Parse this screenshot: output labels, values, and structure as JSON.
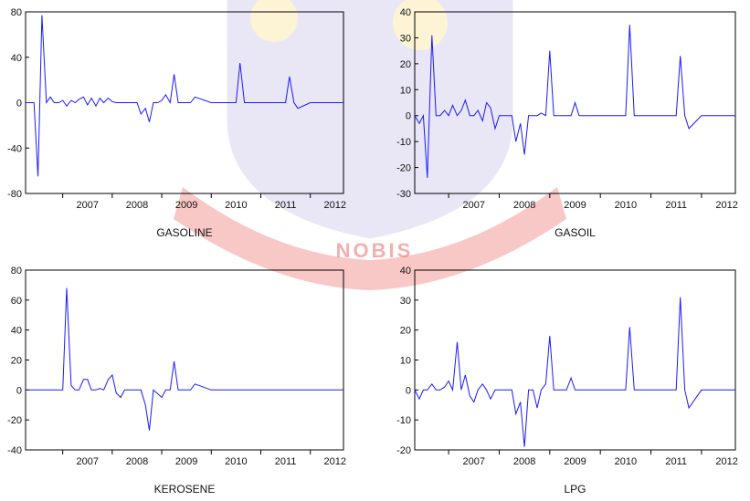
{
  "watermark": {
    "text": "NOBIS",
    "colors": {
      "ribbon": "#e53935",
      "text": "#ffffff",
      "shield": "#7b68c9",
      "crest": "#f2c200"
    }
  },
  "chart_data": [
    {
      "type": "line",
      "title": "GASOLINE",
      "xlabel": "",
      "ylabel": "",
      "ylim": [
        -80,
        80
      ],
      "yticks": [
        80,
        40,
        0,
        -40,
        -80
      ],
      "xlim": [
        2006.25,
        2012.67
      ],
      "xticks": [
        2007,
        2008,
        2009,
        2010,
        2011,
        2012
      ],
      "grid": false,
      "color": "#1a1aff",
      "series": [
        {
          "x": [
            2006.25,
            2006.42,
            2006.5,
            2006.58,
            2006.67,
            2006.75,
            2006.83,
            2006.92,
            2007.0,
            2007.08,
            2007.17,
            2007.25,
            2007.33,
            2007.42,
            2007.5,
            2007.58,
            2007.67,
            2007.75,
            2007.83,
            2007.92,
            2008.0,
            2008.08,
            2008.17,
            2008.25,
            2008.33,
            2008.42,
            2008.5,
            2008.58,
            2008.67,
            2008.75,
            2008.83,
            2008.92,
            2009.0,
            2009.08,
            2009.17,
            2009.25,
            2009.33,
            2009.42,
            2009.5,
            2009.58,
            2009.67,
            2010.0,
            2010.42,
            2010.5,
            2010.58,
            2010.67,
            2011.0,
            2011.42,
            2011.5,
            2011.58,
            2011.67,
            2011.75,
            2012.0,
            2012.67
          ],
          "y": [
            0,
            0,
            -65,
            77,
            0,
            5,
            0,
            0,
            2,
            -3,
            2,
            0,
            3,
            5,
            -2,
            4,
            -3,
            4,
            0,
            4,
            1,
            0,
            0,
            0,
            0,
            0,
            0,
            -10,
            -5,
            -17,
            0,
            0,
            2,
            7,
            0,
            25,
            0,
            0,
            0,
            0,
            5,
            0,
            0,
            0,
            35,
            0,
            0,
            0,
            0,
            23,
            0,
            -5,
            0,
            0
          ]
        }
      ]
    },
    {
      "type": "line",
      "title": "GASOIL",
      "xlabel": "",
      "ylabel": "",
      "ylim": [
        -30,
        40
      ],
      "yticks": [
        40,
        30,
        20,
        10,
        0,
        -10,
        -20,
        -30
      ],
      "xlim": [
        2006.33,
        2012.67
      ],
      "xticks": [
        2007,
        2008,
        2009,
        2010,
        2011,
        2012
      ],
      "grid": false,
      "color": "#1a1aff",
      "series": [
        {
          "x": [
            2006.33,
            2006.42,
            2006.5,
            2006.58,
            2006.67,
            2006.75,
            2006.83,
            2006.92,
            2007.0,
            2007.08,
            2007.17,
            2007.25,
            2007.33,
            2007.42,
            2007.5,
            2007.58,
            2007.67,
            2007.75,
            2007.83,
            2007.92,
            2008.0,
            2008.08,
            2008.17,
            2008.25,
            2008.33,
            2008.42,
            2008.5,
            2008.58,
            2008.67,
            2008.75,
            2008.83,
            2008.92,
            2009.0,
            2009.08,
            2009.17,
            2009.25,
            2009.33,
            2009.42,
            2009.5,
            2009.58,
            2009.67,
            2010.0,
            2010.5,
            2010.58,
            2010.67,
            2011.0,
            2011.5,
            2011.58,
            2011.67,
            2011.75,
            2012.0,
            2012.67
          ],
          "y": [
            0,
            -3,
            0,
            -24,
            31,
            0,
            0,
            2,
            0,
            4,
            0,
            2,
            6,
            0,
            0,
            2,
            -2,
            5,
            3,
            -5,
            0,
            0,
            0,
            0,
            -10,
            -3,
            -15,
            0,
            0,
            0,
            1,
            0,
            25,
            0,
            0,
            0,
            0,
            0,
            5,
            0,
            0,
            0,
            0,
            35,
            0,
            0,
            0,
            23,
            0,
            -5,
            0,
            0
          ]
        }
      ]
    },
    {
      "type": "line",
      "title": "KEROSENE",
      "xlabel": "",
      "ylabel": "",
      "ylim": [
        -40,
        80
      ],
      "yticks": [
        80,
        60,
        40,
        20,
        0,
        -20,
        -40
      ],
      "xlim": [
        2006.25,
        2012.67
      ],
      "xticks": [
        2007,
        2008,
        2009,
        2010,
        2011,
        2012
      ],
      "grid": false,
      "color": "#1a1aff",
      "series": [
        {
          "x": [
            2006.25,
            2006.5,
            2006.75,
            2007.0,
            2007.08,
            2007.17,
            2007.25,
            2007.33,
            2007.42,
            2007.5,
            2007.58,
            2007.67,
            2007.75,
            2007.83,
            2007.92,
            2008.0,
            2008.08,
            2008.17,
            2008.25,
            2008.33,
            2008.42,
            2008.5,
            2008.58,
            2008.67,
            2008.75,
            2008.83,
            2009.0,
            2009.08,
            2009.17,
            2009.25,
            2009.33,
            2009.42,
            2009.5,
            2009.58,
            2009.67,
            2010.0,
            2012.67
          ],
          "y": [
            0,
            0,
            0,
            0,
            68,
            3,
            0,
            0,
            7,
            7,
            0,
            0,
            1,
            0,
            7,
            10,
            -2,
            -5,
            0,
            0,
            0,
            0,
            0,
            -10,
            -27,
            0,
            -5,
            0,
            0,
            19,
            0,
            0,
            0,
            0,
            4,
            0,
            0
          ]
        }
      ]
    },
    {
      "type": "line",
      "title": "LPG",
      "xlabel": "",
      "ylabel": "",
      "ylim": [
        -20,
        40
      ],
      "yticks": [
        40,
        30,
        20,
        10,
        0,
        -10,
        -20
      ],
      "xlim": [
        2006.33,
        2012.67
      ],
      "xticks": [
        2007,
        2008,
        2009,
        2010,
        2011,
        2012
      ],
      "grid": false,
      "color": "#1a1aff",
      "series": [
        {
          "x": [
            2006.33,
            2006.42,
            2006.5,
            2006.58,
            2006.67,
            2006.75,
            2006.83,
            2006.92,
            2007.0,
            2007.08,
            2007.17,
            2007.25,
            2007.33,
            2007.42,
            2007.5,
            2007.58,
            2007.67,
            2007.75,
            2007.83,
            2007.92,
            2008.0,
            2008.08,
            2008.17,
            2008.25,
            2008.33,
            2008.42,
            2008.5,
            2008.58,
            2008.67,
            2008.75,
            2008.83,
            2008.92,
            2009.0,
            2009.08,
            2009.17,
            2009.25,
            2009.33,
            2009.42,
            2009.5,
            2009.58,
            2009.67,
            2010.0,
            2010.5,
            2010.58,
            2010.67,
            2011.0,
            2011.5,
            2011.58,
            2011.67,
            2011.75,
            2012.0,
            2012.67
          ],
          "y": [
            0,
            -3,
            0,
            0,
            2,
            0,
            0,
            1,
            3,
            0,
            16,
            0,
            5,
            -2,
            -4,
            0,
            2,
            0,
            -3,
            0,
            0,
            0,
            0,
            0,
            -8,
            -4,
            -19,
            0,
            0,
            -6,
            0,
            2,
            18,
            0,
            0,
            0,
            0,
            4,
            0,
            0,
            0,
            0,
            0,
            21,
            0,
            0,
            0,
            31,
            0,
            -6,
            0,
            0
          ]
        }
      ]
    }
  ]
}
